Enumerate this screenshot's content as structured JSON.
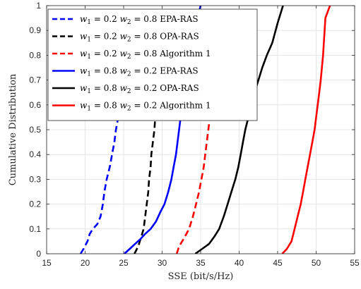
{
  "chart_data": {
    "type": "line",
    "xlabel": "SSE (bit/s/Hz)",
    "ylabel": "Cumulative Distribution",
    "xlim": [
      15,
      55
    ],
    "ylim": [
      0,
      1
    ],
    "xticks": [
      15,
      20,
      25,
      30,
      35,
      40,
      45,
      50,
      55
    ],
    "yticks": [
      0,
      0.1,
      0.2,
      0.3,
      0.4,
      0.5,
      0.6,
      0.7,
      0.8,
      0.9,
      1
    ],
    "xtick_labels": [
      "15",
      "20",
      "25",
      "30",
      "35",
      "40",
      "45",
      "50",
      "55"
    ],
    "ytick_labels": [
      "0",
      "0.1",
      "0.2",
      "0.3",
      "0.4",
      "0.5",
      "0.6",
      "0.7",
      "0.8",
      "0.9",
      "1"
    ],
    "grid": true,
    "legend_position": "top-left",
    "series": [
      {
        "name": "w1 = 0.2 w2 = 0.8 EPA-RAS",
        "legend": {
          "w1": "w",
          "s1": "1",
          "eq1": " = 0.2 ",
          "w2": "w",
          "s2": "2",
          "eq2": " = 0.8 ",
          "method": "EPA-RAS"
        },
        "color": "#0000ff",
        "dash": "dashed",
        "x": [
          19.4,
          19.8,
          20.3,
          20.6,
          21.0,
          21.6,
          22.0,
          22.3,
          22.5,
          22.8,
          23.2,
          23.5,
          23.8,
          24.0,
          24.3,
          24.5,
          24.7,
          24.9,
          25.1
        ],
        "y": [
          0.0,
          0.02,
          0.05,
          0.08,
          0.1,
          0.12,
          0.15,
          0.2,
          0.25,
          0.3,
          0.35,
          0.4,
          0.45,
          0.5,
          0.55,
          0.6,
          0.65,
          0.7,
          0.75
        ]
      },
      {
        "name": "w1 = 0.2 w2 = 0.8 OPA-RAS",
        "legend": {
          "w1": "w",
          "s1": "1",
          "eq1": " = 0.2 ",
          "w2": "w",
          "s2": "2",
          "eq2": " = 0.8 ",
          "method": "OPA-RAS"
        },
        "color": "#000000",
        "dash": "dashed",
        "x": [
          26.4,
          26.9,
          27.3,
          27.6,
          27.8,
          28.0,
          28.2,
          28.3,
          28.5,
          28.6,
          28.8,
          29.0,
          29.1,
          29.3,
          29.5,
          29.8,
          30.0,
          30.2
        ],
        "y": [
          0.0,
          0.03,
          0.07,
          0.1,
          0.15,
          0.2,
          0.25,
          0.3,
          0.35,
          0.4,
          0.45,
          0.5,
          0.55,
          0.6,
          0.65,
          0.7,
          0.75,
          0.8
        ]
      },
      {
        "name": "w1 = 0.2 w2 = 0.8 Algorithm 1",
        "legend": {
          "w1": "w",
          "s1": "1",
          "eq1": " = 0.2 ",
          "w2": "w",
          "s2": "2",
          "eq2": " = 0.8 ",
          "method": "Algorithm 1"
        },
        "color": "#ff0000",
        "dash": "dashed",
        "x": [
          31.9,
          32.2,
          32.8,
          33.5,
          34.0,
          34.4,
          34.8,
          35.1,
          35.4,
          35.6,
          35.8,
          36.0,
          36.2,
          36.4,
          36.6,
          36.8,
          37.0
        ],
        "y": [
          0.0,
          0.03,
          0.06,
          0.1,
          0.15,
          0.2,
          0.25,
          0.3,
          0.35,
          0.4,
          0.45,
          0.5,
          0.55,
          0.6,
          0.65,
          0.7,
          0.75
        ]
      },
      {
        "name": "w1 = 0.8 w2 = 0.2 EPA-RAS",
        "legend": {
          "w1": "w",
          "s1": "1",
          "eq1": " = 0.8 ",
          "w2": "w",
          "s2": "2",
          "eq2": " = 0.2 ",
          "method": "EPA-RAS"
        },
        "color": "#0000ff",
        "dash": "solid",
        "x": [
          25.1,
          25.8,
          26.5,
          27.2,
          27.8,
          28.5,
          29.2,
          29.8,
          30.3,
          30.8,
          31.2,
          31.5,
          31.8,
          32.0,
          32.2,
          32.4,
          32.6,
          32.8,
          33.0,
          33.3,
          33.8,
          34.6,
          35.0
        ],
        "y": [
          0.0,
          0.02,
          0.04,
          0.06,
          0.08,
          0.1,
          0.13,
          0.17,
          0.2,
          0.25,
          0.3,
          0.35,
          0.4,
          0.45,
          0.5,
          0.55,
          0.6,
          0.65,
          0.7,
          0.75,
          0.85,
          0.95,
          1.0
        ]
      },
      {
        "name": "w1 = 0.8 w2 = 0.2 OPA-RAS",
        "legend": {
          "w1": "w",
          "s1": "1",
          "eq1": " = 0.8 ",
          "w2": "w",
          "s2": "2",
          "eq2": " = 0.2 ",
          "method": "OPA-RAS"
        },
        "color": "#000000",
        "dash": "solid",
        "x": [
          34.3,
          35.2,
          36.1,
          36.8,
          37.4,
          38.0,
          38.5,
          39.0,
          39.5,
          39.9,
          40.2,
          40.5,
          40.8,
          41.2,
          41.6,
          42.0,
          42.5,
          43.0,
          43.6,
          44.3,
          45.0,
          45.7
        ],
        "y": [
          0.0,
          0.02,
          0.04,
          0.07,
          0.1,
          0.15,
          0.2,
          0.25,
          0.3,
          0.35,
          0.4,
          0.45,
          0.5,
          0.55,
          0.6,
          0.65,
          0.7,
          0.75,
          0.8,
          0.85,
          0.93,
          1.0
        ]
      },
      {
        "name": "w1 = 0.8 w2 = 0.2 Algorithm 1",
        "legend": {
          "w1": "w",
          "s1": "1",
          "eq1": " = 0.8 ",
          "w2": "w",
          "s2": "2",
          "eq2": " = 0.2 ",
          "method": "Algorithm 1"
        },
        "color": "#ff0000",
        "dash": "solid",
        "x": [
          45.6,
          46.2,
          46.8,
          47.2,
          47.6,
          48.0,
          48.3,
          48.6,
          48.9,
          49.2,
          49.5,
          49.8,
          50.0,
          50.2,
          50.4,
          50.6,
          50.9,
          51.2,
          51.8
        ],
        "y": [
          0.0,
          0.02,
          0.05,
          0.1,
          0.15,
          0.2,
          0.25,
          0.3,
          0.35,
          0.4,
          0.45,
          0.5,
          0.55,
          0.6,
          0.65,
          0.7,
          0.8,
          0.95,
          1.0
        ]
      }
    ]
  }
}
